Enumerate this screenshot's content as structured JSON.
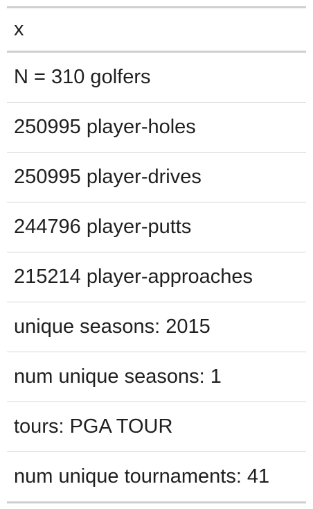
{
  "table": {
    "header": "x",
    "rows": [
      "N = 310 golfers",
      "250995 player-holes",
      "250995 player-drives",
      "244796 player-putts",
      "215214 player-approaches",
      "unique seasons: 2015",
      "num unique seasons: 1",
      "tours: PGA TOUR",
      "num unique tournaments: 41"
    ]
  }
}
